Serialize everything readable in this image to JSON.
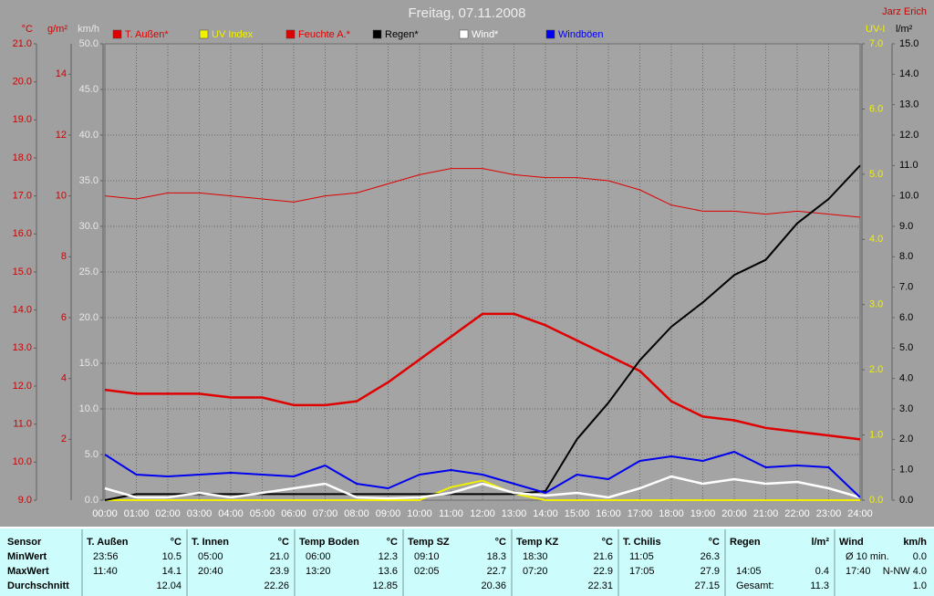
{
  "chart_data": {
    "type": "line",
    "title": "Freitag, 07.11.2008",
    "author": "Jarz Erich",
    "x": [
      0,
      1,
      2,
      3,
      4,
      5,
      6,
      7,
      8,
      9,
      10,
      11,
      12,
      13,
      14,
      15,
      16,
      17,
      18,
      19,
      20,
      21,
      22,
      23,
      24
    ],
    "xlim": [
      0,
      24
    ],
    "xticks": [
      {
        "value": 0,
        "label": "00:00"
      },
      {
        "value": 1,
        "label": "01:00"
      },
      {
        "value": 2,
        "label": "02:00"
      },
      {
        "value": 3,
        "label": "03:00"
      },
      {
        "value": 4,
        "label": "04:00"
      },
      {
        "value": 5,
        "label": "05:00"
      },
      {
        "value": 6,
        "label": "06:00"
      },
      {
        "value": 7,
        "label": "07:00"
      },
      {
        "value": 8,
        "label": "08:00"
      },
      {
        "value": 9,
        "label": "09:00"
      },
      {
        "value": 10,
        "label": "10:00"
      },
      {
        "value": 11,
        "label": "11:00"
      },
      {
        "value": 12,
        "label": "12:00"
      },
      {
        "value": 13,
        "label": "13:00"
      },
      {
        "value": 14,
        "label": "14:00"
      },
      {
        "value": 15,
        "label": "15:00"
      },
      {
        "value": 16,
        "label": "16:00"
      },
      {
        "value": 17,
        "label": "17:00"
      },
      {
        "value": 18,
        "label": "18:00"
      },
      {
        "value": 19,
        "label": "19:00"
      },
      {
        "value": 20,
        "label": "20:00"
      },
      {
        "value": 21,
        "label": "21:00"
      },
      {
        "value": 22,
        "label": "22:00"
      },
      {
        "value": 23,
        "label": "23:00"
      },
      {
        "value": 24,
        "label": "24:00"
      }
    ],
    "grid": true,
    "axes": [
      {
        "label": "°C",
        "color": "#d00000",
        "side": "left",
        "lim": [
          9,
          21
        ],
        "ticks": [
          {
            "value": 9,
            "label": "9.0"
          },
          {
            "value": 10,
            "label": "10.0"
          },
          {
            "value": 11,
            "label": "11.0"
          },
          {
            "value": 12,
            "label": "12.0"
          },
          {
            "value": 13,
            "label": "13.0"
          },
          {
            "value": 14,
            "label": "14.0"
          },
          {
            "value": 15,
            "label": "15.0"
          },
          {
            "value": 16,
            "label": "16.0"
          },
          {
            "value": 17,
            "label": "17.0"
          },
          {
            "value": 18,
            "label": "18.0"
          },
          {
            "value": 19,
            "label": "19.0"
          },
          {
            "value": 20,
            "label": "20.0"
          },
          {
            "value": 21,
            "label": "21.0"
          }
        ]
      },
      {
        "label": "g/m²",
        "color": "#d00000",
        "side": "left",
        "lim": [
          0,
          15
        ],
        "ticks": [
          2,
          4,
          6,
          8,
          10,
          12,
          14
        ]
      },
      {
        "label": "km/h",
        "color": "#e8e8e8",
        "side": "left",
        "lim": [
          0,
          50
        ],
        "grid": true,
        "ticks": [
          {
            "value": 0,
            "label": "0.0"
          },
          {
            "value": 5,
            "label": "5.0"
          },
          {
            "value": 10,
            "label": "10.0"
          },
          {
            "value": 15,
            "label": "15.0"
          },
          {
            "value": 20,
            "label": "20.0"
          },
          {
            "value": 25,
            "label": "25.0"
          },
          {
            "value": 30,
            "label": "30.0"
          },
          {
            "value": 35,
            "label": "35.0"
          },
          {
            "value": 40,
            "label": "40.0"
          },
          {
            "value": 45,
            "label": "45.0"
          },
          {
            "value": 50,
            "label": "50.0"
          }
        ]
      },
      {
        "label": "UV-I",
        "color": "#f0f000",
        "side": "right",
        "lim": [
          0,
          7
        ],
        "ticks": [
          {
            "value": 0,
            "label": "0.0"
          },
          {
            "value": 1,
            "label": "1.0"
          },
          {
            "value": 2,
            "label": "2.0"
          },
          {
            "value": 3,
            "label": "3.0"
          },
          {
            "value": 4,
            "label": "4.0"
          },
          {
            "value": 5,
            "label": "5.0"
          },
          {
            "value": 6,
            "label": "6.0"
          },
          {
            "value": 7,
            "label": "7.0"
          }
        ]
      },
      {
        "label": "l/m²",
        "color": "#000000",
        "side": "right",
        "lim": [
          0,
          15
        ],
        "ticks": [
          {
            "value": 0,
            "label": "0.0"
          },
          {
            "value": 1,
            "label": "1.0"
          },
          {
            "value": 2,
            "label": "2.0"
          },
          {
            "value": 3,
            "label": "3.0"
          },
          {
            "value": 4,
            "label": "4.0"
          },
          {
            "value": 5,
            "label": "5.0"
          },
          {
            "value": 6,
            "label": "6.0"
          },
          {
            "value": 7,
            "label": "7.0"
          },
          {
            "value": 8,
            "label": "8.0"
          },
          {
            "value": 9,
            "label": "9.0"
          },
          {
            "value": 10,
            "label": "10.0"
          },
          {
            "value": 11,
            "label": "11.0"
          },
          {
            "value": 12,
            "label": "12.0"
          },
          {
            "value": 13,
            "label": "13.0"
          },
          {
            "value": 14,
            "label": "14.0"
          },
          {
            "value": 15,
            "label": "15.0"
          }
        ]
      }
    ],
    "series": [
      {
        "name": "T. Außen*",
        "color": "#e00000",
        "axis": 0,
        "line_width": 2.5,
        "values": [
          11.9,
          11.8,
          11.8,
          11.8,
          11.7,
          11.7,
          11.5,
          11.5,
          11.6,
          12.1,
          12.7,
          13.3,
          13.9,
          13.9,
          13.6,
          13.2,
          12.8,
          12.4,
          11.6,
          11.2,
          11.1,
          10.9,
          10.8,
          10.7,
          10.6
        ]
      },
      {
        "name": "UV Index",
        "color": "#f0f000",
        "axis": 3,
        "line_width": 2,
        "values": [
          0,
          0,
          0,
          0,
          0,
          0,
          0,
          0,
          0,
          0,
          0,
          0.2,
          0.3,
          0.1,
          0,
          0,
          0,
          0,
          0,
          0,
          0,
          0,
          0,
          0,
          0
        ]
      },
      {
        "name": "Feuchte A.*",
        "color": "#e00000",
        "axis": 1,
        "line_width": 1,
        "values": [
          10.0,
          9.9,
          10.1,
          10.1,
          10.0,
          9.9,
          9.8,
          10.0,
          10.1,
          10.4,
          10.7,
          10.9,
          10.9,
          10.7,
          10.6,
          10.6,
          10.5,
          10.2,
          9.7,
          9.5,
          9.5,
          9.4,
          9.5,
          9.4,
          9.3
        ]
      },
      {
        "name": "Regen*",
        "color": "#000000",
        "axis": 4,
        "line_width": 2,
        "values": [
          0,
          0.2,
          0.2,
          0.2,
          0.2,
          0.2,
          0.2,
          0.2,
          0.2,
          0.2,
          0.2,
          0.2,
          0.2,
          0.2,
          0.3,
          2.0,
          3.2,
          4.6,
          5.7,
          6.5,
          7.4,
          7.9,
          9.1,
          9.9,
          11.0
        ]
      },
      {
        "name": "Wind*",
        "color": "#ffffff",
        "axis": 2,
        "line_width": 2.5,
        "values": [
          1.3,
          0.3,
          0.3,
          0.8,
          0.3,
          0.8,
          1.3,
          1.8,
          0.3,
          0.2,
          0.3,
          0.8,
          1.8,
          0.8,
          0.5,
          0.8,
          0.3,
          1.3,
          2.6,
          1.8,
          2.3,
          1.8,
          2.0,
          1.3,
          0.3
        ]
      },
      {
        "name": "Windböen",
        "color": "#0000f0",
        "axis": 2,
        "line_width": 2,
        "values": [
          5.0,
          2.8,
          2.6,
          2.8,
          3.0,
          2.8,
          2.6,
          3.8,
          1.8,
          1.3,
          2.8,
          3.3,
          2.8,
          1.8,
          0.8,
          2.8,
          2.3,
          4.3,
          4.8,
          4.3,
          5.3,
          3.6,
          3.8,
          3.6,
          0.3
        ]
      }
    ]
  },
  "table": {
    "sensor_header": "Sensor",
    "row_labels": [
      "MinWert",
      "MaxWert",
      "Durchschnitt"
    ],
    "columns": [
      {
        "name": "T. Außen",
        "unit": "°C",
        "cells": [
          [
            "23:56",
            "10.5"
          ],
          [
            "11:40",
            "14.1"
          ],
          [
            null,
            "12.04"
          ]
        ]
      },
      {
        "name": "T. Innen",
        "unit": "°C",
        "cells": [
          [
            "05:00",
            "21.0"
          ],
          [
            "20:40",
            "23.9"
          ],
          [
            null,
            "22.26"
          ]
        ]
      },
      {
        "name": "Temp Boden",
        "unit": "°C",
        "cells": [
          [
            "06:00",
            "12.3"
          ],
          [
            "13:20",
            "13.6"
          ],
          [
            null,
            "12.85"
          ]
        ]
      },
      {
        "name": "Temp SZ",
        "unit": "°C",
        "cells": [
          [
            "09:10",
            "18.3"
          ],
          [
            "02:05",
            "22.7"
          ],
          [
            null,
            "20.36"
          ]
        ]
      },
      {
        "name": "Temp KZ",
        "unit": "°C",
        "cells": [
          [
            "18:30",
            "21.6"
          ],
          [
            "07:20",
            "22.9"
          ],
          [
            null,
            "22.31"
          ]
        ]
      },
      {
        "name": "T. Chilis",
        "unit": "°C",
        "cells": [
          [
            "11:05",
            "26.3"
          ],
          [
            "17:05",
            "27.9"
          ],
          [
            null,
            "27.15"
          ]
        ]
      },
      {
        "name": "Regen",
        "unit": "l/m²",
        "cells": [
          [
            null,
            null
          ],
          [
            "14:05",
            "0.4"
          ],
          [
            "Gesamt:",
            "11.3"
          ]
        ]
      },
      {
        "name": "Wind",
        "unit": "km/h",
        "cells": [
          [
            "Ø 10 min.",
            "0.0"
          ],
          [
            "17:40",
            "N-NW 4.0"
          ],
          [
            null,
            "1.0"
          ]
        ]
      }
    ]
  }
}
